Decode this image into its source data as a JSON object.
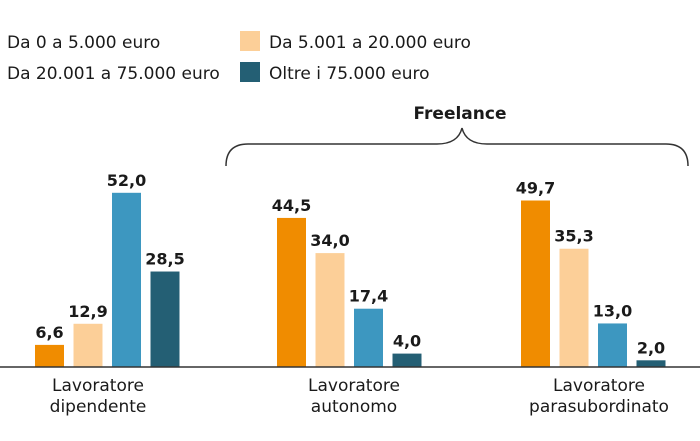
{
  "chart_data": {
    "type": "bar",
    "categories": [
      [
        "Lavoratore",
        "dipendente"
      ],
      [
        "Lavoratore",
        "autonomo"
      ],
      [
        "Lavoratore",
        "parasubordinato"
      ]
    ],
    "series": [
      {
        "name": "Da 0 a 5.000 euro",
        "color": "#f08c00",
        "values": [
          6.6,
          44.5,
          49.7
        ]
      },
      {
        "name": "Da 5.001 a 20.000 euro",
        "color": "#fccf98",
        "values": [
          12.9,
          34.0,
          35.3
        ]
      },
      {
        "name": "Da 20.001 a 75.000 euro",
        "color": "#3d97c0",
        "values": [
          52.0,
          17.4,
          13.0
        ]
      },
      {
        "name": "Oltre i 75.000 euro",
        "color": "#245f74",
        "values": [
          28.5,
          4.0,
          2.0
        ]
      }
    ],
    "value_labels": [
      [
        "6,6",
        "44,5",
        "49,7"
      ],
      [
        "12,9",
        "34,0",
        "35,3"
      ],
      [
        "52,0",
        "17,4",
        "13,0"
      ],
      [
        "28,5",
        "4,0",
        "2,0"
      ]
    ],
    "bracket": {
      "label": "Freelance",
      "spans": [
        "Lavoratore autonomo",
        "Lavoratore parasubordinato"
      ]
    },
    "legend_position": "top-left",
    "grid": false,
    "ylim": [
      0,
      52
    ]
  }
}
